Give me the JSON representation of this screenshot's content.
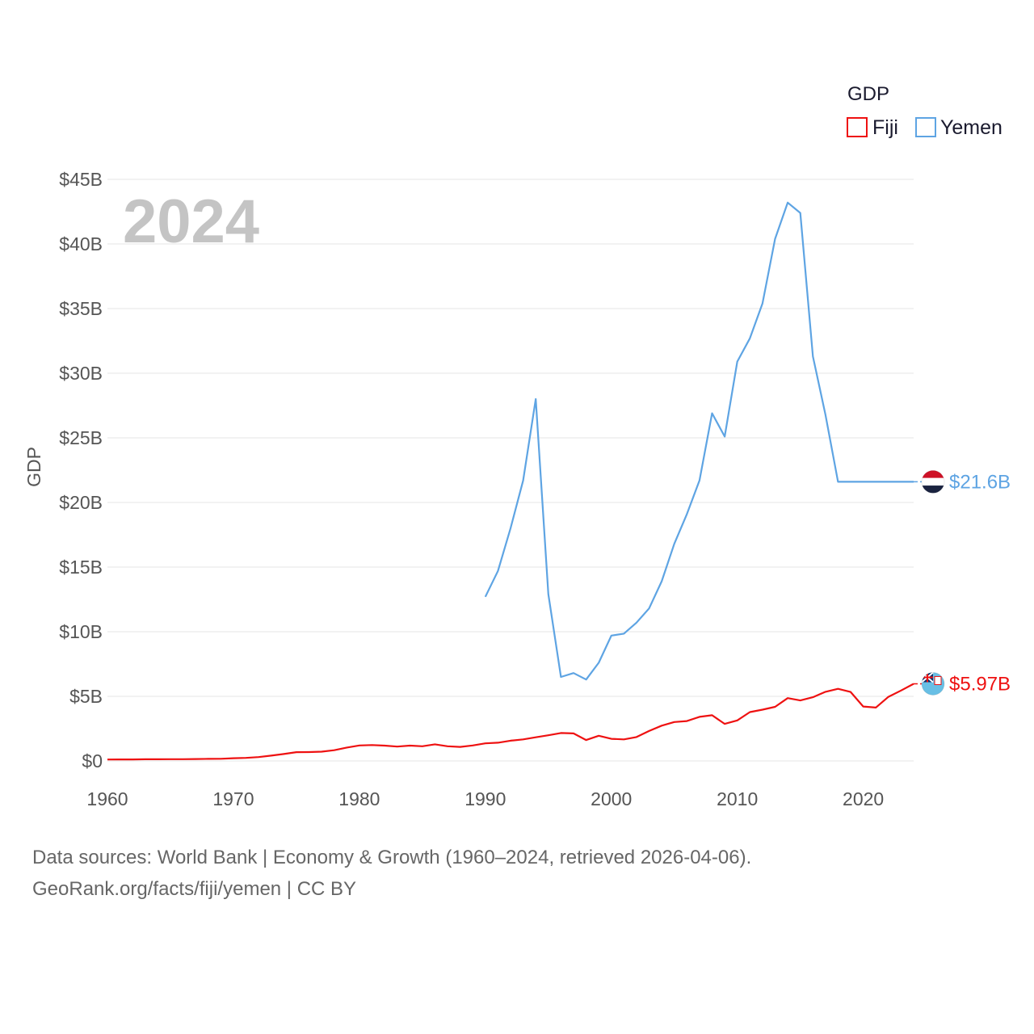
{
  "chart_data": {
    "type": "line",
    "title": "",
    "xlabel": "",
    "ylabel": "GDP",
    "legend_title": "GDP",
    "year_label": "2024",
    "xlim": [
      1960,
      2024
    ],
    "ylim": [
      0,
      45
    ],
    "x_ticks": [
      1960,
      1970,
      1980,
      1990,
      2000,
      2010,
      2020
    ],
    "y_ticks": [
      {
        "value": 0,
        "label": "$0"
      },
      {
        "value": 5,
        "label": "$5B"
      },
      {
        "value": 10,
        "label": "$10B"
      },
      {
        "value": 15,
        "label": "$15B"
      },
      {
        "value": 20,
        "label": "$20B"
      },
      {
        "value": 25,
        "label": "$25B"
      },
      {
        "value": 30,
        "label": "$30B"
      },
      {
        "value": 35,
        "label": "$35B"
      },
      {
        "value": 40,
        "label": "$40B"
      },
      {
        "value": 45,
        "label": "$45B"
      }
    ],
    "series": [
      {
        "name": "Fiji",
        "color": "#ee1111",
        "end_label": "$5.97B",
        "flag": "fiji-flag",
        "x": [
          1960,
          1961,
          1962,
          1963,
          1964,
          1965,
          1966,
          1967,
          1968,
          1969,
          1970,
          1971,
          1972,
          1973,
          1974,
          1975,
          1976,
          1977,
          1978,
          1979,
          1980,
          1981,
          1982,
          1983,
          1984,
          1985,
          1986,
          1987,
          1988,
          1989,
          1990,
          1991,
          1992,
          1993,
          1994,
          1995,
          1996,
          1997,
          1998,
          1999,
          2000,
          2001,
          2002,
          2003,
          2004,
          2005,
          2006,
          2007,
          2008,
          2009,
          2010,
          2011,
          2012,
          2013,
          2014,
          2015,
          2016,
          2017,
          2018,
          2019,
          2020,
          2021,
          2022,
          2023,
          2024
        ],
        "values": [
          0.11,
          0.12,
          0.12,
          0.13,
          0.13,
          0.14,
          0.14,
          0.15,
          0.16,
          0.17,
          0.21,
          0.24,
          0.3,
          0.41,
          0.54,
          0.68,
          0.69,
          0.72,
          0.83,
          1.04,
          1.2,
          1.23,
          1.19,
          1.11,
          1.19,
          1.14,
          1.29,
          1.14,
          1.09,
          1.2,
          1.36,
          1.41,
          1.57,
          1.67,
          1.83,
          1.99,
          2.16,
          2.13,
          1.62,
          1.95,
          1.71,
          1.67,
          1.85,
          2.32,
          2.73,
          3.01,
          3.09,
          3.41,
          3.54,
          2.87,
          3.14,
          3.78,
          3.97,
          4.19,
          4.86,
          4.68,
          4.93,
          5.35,
          5.58,
          5.34,
          4.21,
          4.13,
          4.96,
          5.45,
          5.97
        ]
      },
      {
        "name": "Yemen",
        "color": "#5ea4e3",
        "end_label": "$21.6B",
        "flag": "yemen-flag",
        "x": [
          1990,
          1991,
          1992,
          1993,
          1994,
          1995,
          1996,
          1997,
          1998,
          1999,
          2000,
          2001,
          2002,
          2003,
          2004,
          2005,
          2006,
          2007,
          2008,
          2009,
          2010,
          2011,
          2012,
          2013,
          2014,
          2015,
          2016,
          2017,
          2018,
          2024
        ],
        "values": [
          12.7,
          14.7,
          18.0,
          21.7,
          28.0,
          12.9,
          6.5,
          6.8,
          6.3,
          7.6,
          9.7,
          9.85,
          10.7,
          11.8,
          13.9,
          16.8,
          19.1,
          21.7,
          26.9,
          25.1,
          30.9,
          32.7,
          35.4,
          40.4,
          43.2,
          42.4,
          31.3,
          26.8,
          21.6,
          21.6
        ]
      }
    ]
  },
  "source": {
    "line1": "Data sources: World Bank | Economy & Growth (1960–2024, retrieved 2026-04-06).",
    "line2": "GeoRank.org/facts/fiji/yemen | CC BY"
  }
}
